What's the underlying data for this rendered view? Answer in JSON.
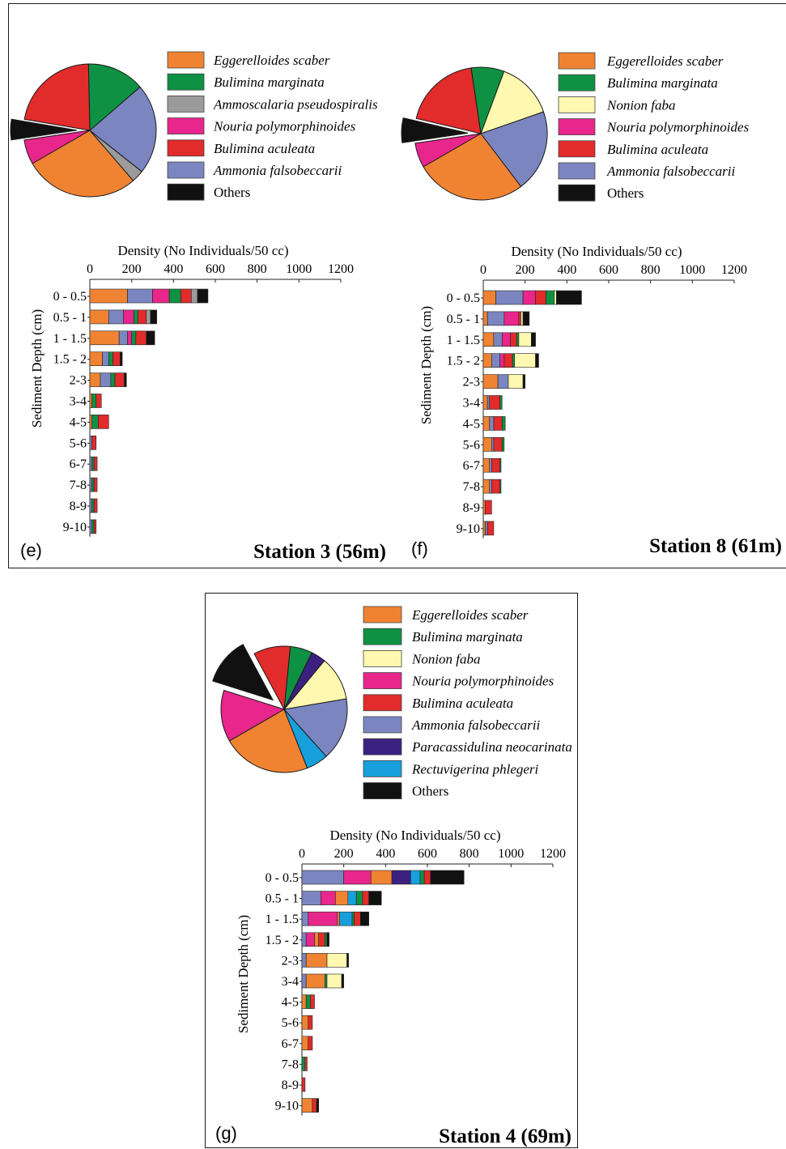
{
  "chart_data": [
    {
      "type": "bar",
      "panel_label": "(e)",
      "title": "Station 3 (56m)",
      "xlabel": "Density  (No Individuals/50 cc)",
      "ylabel": "Sediment Depth (cm)",
      "xlim": [
        0,
        1200
      ],
      "xticks": [
        "0",
        "200",
        "400",
        "600",
        "800",
        "1000",
        "1200"
      ],
      "categories": [
        "0 - 0.5",
        "0.5 - 1",
        "1 - 1.5",
        "1.5 - 2",
        "2-3",
        "3-4",
        "4-5",
        "5-6",
        "6-7",
        "7-8",
        "8-9",
        "9-10"
      ],
      "legend": [
        "Eggerelloides scaber",
        "Bulimina marginata",
        "Ammoscalaria pseudospiralis",
        "Nouria polymorphinoides",
        "Bulimina aculeata",
        "Ammonia falsobeccarii",
        "Others"
      ],
      "legend_colors": [
        "#f08332",
        "#0f9143",
        "#9b9b9b",
        "#e8268b",
        "#e22b2b",
        "#7b86c0",
        "#111111"
      ],
      "pie": [
        {
          "name": "Eggerelloides scaber",
          "color": "#f08332",
          "value": 28
        },
        {
          "name": "Ammoscalaria pseudospiralis",
          "color": "#9b9b9b",
          "value": 3
        },
        {
          "name": "Ammonia falsobeccarii",
          "color": "#7b86c0",
          "value": 22
        },
        {
          "name": "Bulimina marginata",
          "color": "#0f9143",
          "value": 14
        },
        {
          "name": "Bulimina aculeata",
          "color": "#e22b2b",
          "value": 22
        },
        {
          "name": "Others",
          "color": "#111111",
          "value": 5,
          "exploded": true
        },
        {
          "name": "Nouria polymorphinoides",
          "color": "#e8268b",
          "value": 6
        }
      ],
      "series": [
        {
          "segments": [
            [
              [
                "#f08332",
                180
              ],
              [
                "#7b86c0",
                120
              ],
              [
                "#e8268b",
                80
              ],
              [
                "#0f9143",
                55
              ],
              [
                "#e22b2b",
                50
              ],
              [
                "#9b9b9b",
                30
              ],
              [
                "#111111",
                50
              ]
            ],
            [
              [
                "#f08332",
                90
              ],
              [
                "#7b86c0",
                70
              ],
              [
                "#e8268b",
                50
              ],
              [
                "#0f9143",
                20
              ],
              [
                "#e22b2b",
                40
              ],
              [
                "#9b9b9b",
                20
              ],
              [
                "#111111",
                30
              ]
            ],
            [
              [
                "#f08332",
                140
              ],
              [
                "#7b86c0",
                40
              ],
              [
                "#e8268b",
                20
              ],
              [
                "#0f9143",
                20
              ],
              [
                "#e22b2b",
                50
              ],
              [
                "#111111",
                40
              ]
            ],
            [
              [
                "#f08332",
                60
              ],
              [
                "#7b86c0",
                30
              ],
              [
                "#0f9143",
                20
              ],
              [
                "#e22b2b",
                35
              ],
              [
                "#111111",
                10
              ]
            ],
            [
              [
                "#f08332",
                50
              ],
              [
                "#7b86c0",
                50
              ],
              [
                "#0f9143",
                20
              ],
              [
                "#e22b2b",
                45
              ],
              [
                "#111111",
                10
              ]
            ],
            [
              [
                "#f08332",
                10
              ],
              [
                "#0f9143",
                20
              ],
              [
                "#e22b2b",
                25
              ]
            ],
            [
              [
                "#f08332",
                10
              ],
              [
                "#0f9143",
                30
              ],
              [
                "#e22b2b",
                50
              ]
            ],
            [
              [
                "#7b86c0",
                10
              ],
              [
                "#e22b2b",
                20
              ]
            ],
            [
              [
                "#7b86c0",
                10
              ],
              [
                "#0f9143",
                10
              ],
              [
                "#e22b2b",
                15
              ]
            ],
            [
              [
                "#7b86c0",
                10
              ],
              [
                "#0f9143",
                10
              ],
              [
                "#e22b2b",
                15
              ]
            ],
            [
              [
                "#7b86c0",
                10
              ],
              [
                "#0f9143",
                10
              ],
              [
                "#e22b2b",
                15
              ]
            ],
            [
              [
                "#7b86c0",
                10
              ],
              [
                "#0f9143",
                10
              ],
              [
                "#e22b2b",
                10
              ]
            ]
          ]
        }
      ]
    },
    {
      "type": "bar",
      "panel_label": "(f)",
      "title": "Station 8 (61m)",
      "xlabel": "Density  (No Individuals/50 cc)",
      "ylabel": "Sediment Depth (cm)",
      "xlim": [
        0,
        1200
      ],
      "xticks": [
        "0",
        "200",
        "400",
        "600",
        "800",
        "1000",
        "1200"
      ],
      "categories": [
        "0 - 0.5",
        "0.5 - 1",
        "1 - 1.5",
        "1.5 - 2",
        "2-3",
        "3-4",
        "4-5",
        "5-6",
        "6-7",
        "7-8",
        "8-9",
        "9-10"
      ],
      "legend": [
        "Eggerelloides scaber",
        "Bulimina marginata",
        "Nonion faba",
        "Nouria polymorphinoides",
        "Bulimina aculeata",
        "Ammonia falsobeccarii",
        "Others"
      ],
      "legend_colors": [
        "#f08332",
        "#0f9143",
        "#fff8b0",
        "#e8268b",
        "#e22b2b",
        "#7b86c0",
        "#111111"
      ],
      "pie": [
        {
          "name": "Eggerelloides scaber",
          "color": "#f08332",
          "value": 27
        },
        {
          "name": "Ammonia falsobeccarii",
          "color": "#7b86c0",
          "value": 20
        },
        {
          "name": "Nonion faba",
          "color": "#fff8b0",
          "value": 14
        },
        {
          "name": "Bulimina marginata",
          "color": "#0f9143",
          "value": 8
        },
        {
          "name": "Bulimina aculeata",
          "color": "#e22b2b",
          "value": 19
        },
        {
          "name": "Others",
          "color": "#111111",
          "value": 6,
          "exploded": true
        },
        {
          "name": "Nouria polymorphinoides",
          "color": "#e8268b",
          "value": 6
        }
      ],
      "series": [
        {
          "segments": [
            [
              [
                "#f08332",
                60
              ],
              [
                "#7b86c0",
                130
              ],
              [
                "#e8268b",
                60
              ],
              [
                "#e22b2b",
                50
              ],
              [
                "#0f9143",
                40
              ],
              [
                "#fff8b0",
                10
              ],
              [
                "#111111",
                120
              ]
            ],
            [
              [
                "#f08332",
                20
              ],
              [
                "#7b86c0",
                80
              ],
              [
                "#e8268b",
                70
              ],
              [
                "#e22b2b",
                10
              ],
              [
                "#fff8b0",
                10
              ],
              [
                "#111111",
                30
              ]
            ],
            [
              [
                "#f08332",
                50
              ],
              [
                "#7b86c0",
                40
              ],
              [
                "#e8268b",
                40
              ],
              [
                "#e22b2b",
                30
              ],
              [
                "#0f9143",
                10
              ],
              [
                "#fff8b0",
                60
              ],
              [
                "#111111",
                20
              ]
            ],
            [
              [
                "#f08332",
                40
              ],
              [
                "#7b86c0",
                40
              ],
              [
                "#e8268b",
                20
              ],
              [
                "#e22b2b",
                40
              ],
              [
                "#0f9143",
                10
              ],
              [
                "#fff8b0",
                100
              ],
              [
                "#111111",
                15
              ]
            ],
            [
              [
                "#f08332",
                70
              ],
              [
                "#7b86c0",
                50
              ],
              [
                "#fff8b0",
                70
              ],
              [
                "#111111",
                10
              ]
            ],
            [
              [
                "#f08332",
                20
              ],
              [
                "#7b86c0",
                10
              ],
              [
                "#e22b2b",
                50
              ],
              [
                "#0f9143",
                10
              ]
            ],
            [
              [
                "#f08332",
                30
              ],
              [
                "#7b86c0",
                20
              ],
              [
                "#e22b2b",
                40
              ],
              [
                "#0f9143",
                15
              ]
            ],
            [
              [
                "#f08332",
                40
              ],
              [
                "#7b86c0",
                10
              ],
              [
                "#e22b2b",
                40
              ],
              [
                "#0f9143",
                10
              ]
            ],
            [
              [
                "#f08332",
                30
              ],
              [
                "#7b86c0",
                10
              ],
              [
                "#e22b2b",
                40
              ],
              [
                "#0f9143",
                5
              ]
            ],
            [
              [
                "#f08332",
                30
              ],
              [
                "#7b86c0",
                10
              ],
              [
                "#e22b2b",
                40
              ],
              [
                "#0f9143",
                5
              ]
            ],
            [
              [
                "#f08332",
                10
              ],
              [
                "#e22b2b",
                30
              ]
            ],
            [
              [
                "#f08332",
                10
              ],
              [
                "#7b86c0",
                10
              ],
              [
                "#e22b2b",
                30
              ]
            ]
          ]
        }
      ]
    },
    {
      "type": "bar",
      "panel_label": "(g)",
      "title": "Station 4 (69m)",
      "xlabel": "Density  (No Individuals/50 cc)",
      "ylabel": "Sediment Depth (cm)",
      "xlim": [
        0,
        1200
      ],
      "xticks": [
        "0",
        "200",
        "400",
        "600",
        "800",
        "1000",
        "1200"
      ],
      "categories": [
        "0 - 0.5",
        "0.5 - 1",
        "1 - 1.5",
        "1.5 - 2",
        "2-3",
        "3-4",
        "4-5",
        "5-6",
        "6-7",
        "7-8",
        "8-9",
        "9-10"
      ],
      "legend": [
        "Eggerelloides scaber",
        "Bulimina marginata",
        "Nonion faba",
        "Nouria polymorphinoides",
        "Bulimina aculeata",
        "Ammonia falsobeccarii",
        "Paracassidulina neocarinata",
        "Rectuvigerina phlegeri",
        "Others"
      ],
      "legend_colors": [
        "#f08332",
        "#0f9143",
        "#fff8b0",
        "#e8268b",
        "#e22b2b",
        "#7b86c0",
        "#3b2080",
        "#18a0dc",
        "#111111"
      ],
      "pie": [
        {
          "name": "Eggerelloides scaber",
          "color": "#f08332",
          "value": 24
        },
        {
          "name": "Rectuvigerina phlegeri",
          "color": "#18a0dc",
          "value": 6
        },
        {
          "name": "Ammonia falsobeccarii",
          "color": "#7b86c0",
          "value": 17
        },
        {
          "name": "Nonion faba",
          "color": "#fff8b0",
          "value": 12
        },
        {
          "name": "Paracassidulina neocarinata",
          "color": "#3b2080",
          "value": 4
        },
        {
          "name": "Bulimina marginata",
          "color": "#0f9143",
          "value": 6
        },
        {
          "name": "Bulimina aculeata",
          "color": "#e22b2b",
          "value": 10
        },
        {
          "name": "Others",
          "color": "#111111",
          "value": 13,
          "exploded": true
        },
        {
          "name": "Nouria polymorphinoides",
          "color": "#e8268b",
          "value": 14
        }
      ],
      "series": [
        {
          "segments": [
            [
              [
                "#7b86c0",
                200
              ],
              [
                "#e8268b",
                130
              ],
              [
                "#f08332",
                100
              ],
              [
                "#3b2080",
                90
              ],
              [
                "#18a0dc",
                45
              ],
              [
                "#0f9143",
                20
              ],
              [
                "#e22b2b",
                30
              ],
              [
                "#111111",
                160
              ]
            ],
            [
              [
                "#7b86c0",
                90
              ],
              [
                "#e8268b",
                70
              ],
              [
                "#f08332",
                60
              ],
              [
                "#18a0dc",
                40
              ],
              [
                "#0f9143",
                30
              ],
              [
                "#e22b2b",
                30
              ],
              [
                "#111111",
                60
              ]
            ],
            [
              [
                "#7b86c0",
                30
              ],
              [
                "#e8268b",
                140
              ],
              [
                "#f08332",
                10
              ],
              [
                "#18a0dc",
                60
              ],
              [
                "#0f9143",
                10
              ],
              [
                "#e22b2b",
                30
              ],
              [
                "#111111",
                40
              ]
            ],
            [
              [
                "#7b86c0",
                20
              ],
              [
                "#e8268b",
                40
              ],
              [
                "#f08332",
                20
              ],
              [
                "#e22b2b",
                30
              ],
              [
                "#0f9143",
                10
              ],
              [
                "#111111",
                10
              ]
            ],
            [
              [
                "#7b86c0",
                20
              ],
              [
                "#f08332",
                100
              ],
              [
                "#fff8b0",
                95
              ],
              [
                "#111111",
                8
              ]
            ],
            [
              [
                "#7b86c0",
                20
              ],
              [
                "#f08332",
                90
              ],
              [
                "#0f9143",
                10
              ],
              [
                "#fff8b0",
                70
              ],
              [
                "#111111",
                10
              ]
            ],
            [
              [
                "#f08332",
                20
              ],
              [
                "#0f9143",
                20
              ],
              [
                "#e22b2b",
                20
              ]
            ],
            [
              [
                "#f08332",
                30
              ],
              [
                "#e22b2b",
                20
              ]
            ],
            [
              [
                "#f08332",
                30
              ],
              [
                "#e22b2b",
                20
              ]
            ],
            [
              [
                "#0f9143",
                15
              ],
              [
                "#e22b2b",
                10
              ]
            ],
            [
              [
                "#e22b2b",
                15
              ]
            ],
            [
              [
                "#f08332",
                50
              ],
              [
                "#e22b2b",
                20
              ],
              [
                "#111111",
                10
              ]
            ]
          ]
        }
      ]
    }
  ]
}
